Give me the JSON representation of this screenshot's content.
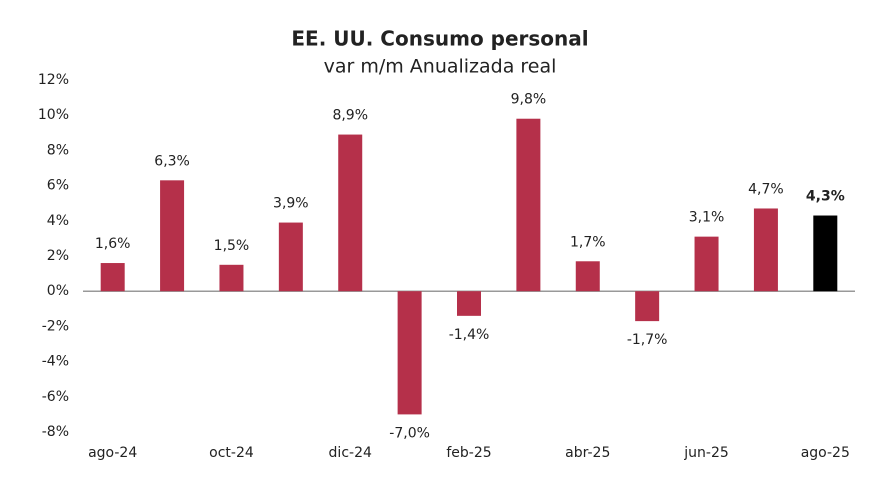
{
  "chart_data": {
    "type": "bar",
    "title": "EE. UU. Consumo personal",
    "subtitle": "var m/m Anualizada real",
    "categories": [
      "ago-24",
      null,
      "oct-24",
      null,
      "dic-24",
      null,
      "feb-25",
      null,
      "abr-25",
      null,
      "jun-25",
      null,
      "ago-25"
    ],
    "values": [
      1.6,
      6.3,
      1.5,
      3.9,
      8.9,
      -7.0,
      -1.4,
      9.8,
      1.7,
      -1.7,
      3.1,
      4.7,
      4.3
    ],
    "value_labels": [
      "1,6%",
      "6,3%",
      "1,5%",
      "3,9%",
      "8,9%",
      "-7,0%",
      "-1,4%",
      "9,8%",
      "1,7%",
      "-1,7%",
      "3,1%",
      "4,7%",
      "4,3%"
    ],
    "color": "#b5304a",
    "highlight_last": true,
    "highlight_color": "#000000",
    "ylim": [
      -8,
      12
    ],
    "yticks": [
      {
        "value": -8,
        "label": "-8%"
      },
      {
        "value": -6,
        "label": "-6%"
      },
      {
        "value": -4,
        "label": "-4%"
      },
      {
        "value": -2,
        "label": "-2%"
      },
      {
        "value": 0,
        "label": "0%"
      },
      {
        "value": 2,
        "label": "2%"
      },
      {
        "value": 4,
        "label": "4%"
      },
      {
        "value": 6,
        "label": "6%"
      },
      {
        "value": 8,
        "label": "8%"
      },
      {
        "value": 10,
        "label": "10%"
      },
      {
        "value": 12,
        "label": "12%"
      }
    ],
    "grid": false
  }
}
